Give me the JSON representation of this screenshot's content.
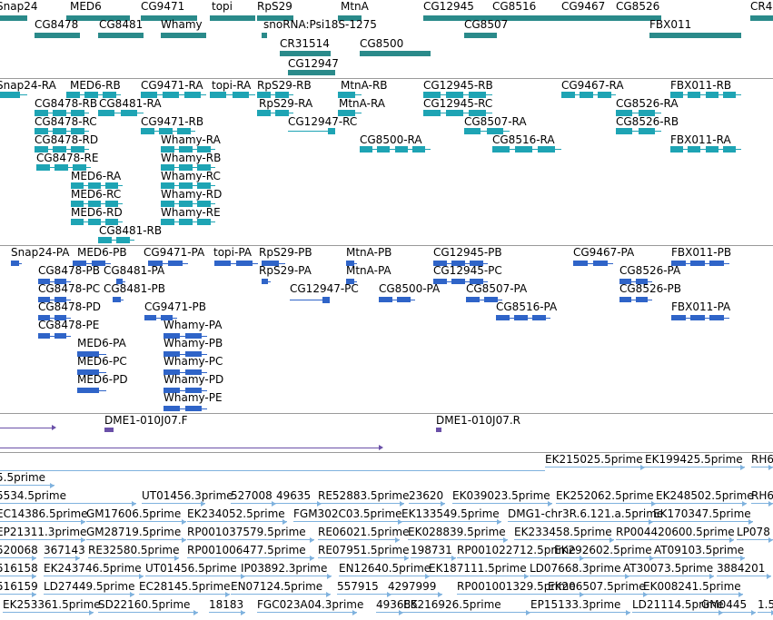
{
  "colors": {
    "gene": "#2a8a8a",
    "transcript": "#1ea4b4",
    "protein": "#2f64c8",
    "clone": "#6a50a8",
    "est": "#7fb2de",
    "separator": "#9a9a9a"
  },
  "tracks": {
    "gene": [
      {
        "label": "Snap24"
      },
      {
        "label": "MED6"
      },
      {
        "label": "CG9471"
      },
      {
        "label": "topi"
      },
      {
        "label": "RpS29"
      },
      {
        "label": "MtnA"
      },
      {
        "label": "CG12945"
      },
      {
        "label": "CG8516"
      },
      {
        "label": "CG9467"
      },
      {
        "label": "CG8526"
      },
      {
        "label": "CR4"
      },
      {
        "label": "CG8478"
      },
      {
        "label": "CG8481"
      },
      {
        "label": "Whamy"
      },
      {
        "label": "snoRNA:Psi18S-1275"
      },
      {
        "label": "CG8507"
      },
      {
        "label": "FBX011"
      },
      {
        "label": "CR31514"
      },
      {
        "label": "CG8500"
      },
      {
        "label": "CG12947"
      }
    ],
    "transcript": [
      {
        "label": "Snap24-RA"
      },
      {
        "label": "MED6-RB"
      },
      {
        "label": "CG9471-RA"
      },
      {
        "label": "topi-RA"
      },
      {
        "label": "RpS29-RB"
      },
      {
        "label": "MtnA-RB"
      },
      {
        "label": "CG12945-RB"
      },
      {
        "label": "CG9467-RA"
      },
      {
        "label": "FBX011-RB"
      },
      {
        "label": "CG8478-RB"
      },
      {
        "label": "CG8481-RA"
      },
      {
        "label": "RpS29-RA"
      },
      {
        "label": "MtnA-RA"
      },
      {
        "label": "CG12945-RC"
      },
      {
        "label": "CG8526-RA"
      },
      {
        "label": "CG8478-RC"
      },
      {
        "label": "CG9471-RB"
      },
      {
        "label": "CG12947-RC"
      },
      {
        "label": "CG8507-RA"
      },
      {
        "label": "CG8526-RB"
      },
      {
        "label": "CG8478-RD"
      },
      {
        "label": "Whamy-RA"
      },
      {
        "label": "CG8500-RA"
      },
      {
        "label": "CG8516-RA"
      },
      {
        "label": "FBX011-RA"
      },
      {
        "label": "CG8478-RE"
      },
      {
        "label": "Whamy-RB"
      },
      {
        "label": "MED6-RA"
      },
      {
        "label": "Whamy-RC"
      },
      {
        "label": "MED6-RC"
      },
      {
        "label": "Whamy-RD"
      },
      {
        "label": "MED6-RD"
      },
      {
        "label": "Whamy-RE"
      },
      {
        "label": "CG8481-RB"
      }
    ],
    "protein": [
      {
        "label": "Snap24-PA"
      },
      {
        "label": "MED6-PB"
      },
      {
        "label": "CG9471-PA"
      },
      {
        "label": "topi-PA"
      },
      {
        "label": "RpS29-PB"
      },
      {
        "label": "MtnA-PB"
      },
      {
        "label": "CG12945-PB"
      },
      {
        "label": "CG9467-PA"
      },
      {
        "label": "FBX011-PB"
      },
      {
        "label": "CG8478-PB"
      },
      {
        "label": "CG8481-PA"
      },
      {
        "label": "RpS29-PA"
      },
      {
        "label": "MtnA-PA"
      },
      {
        "label": "CG12945-PC"
      },
      {
        "label": "CG8526-PA"
      },
      {
        "label": "CG8478-PC"
      },
      {
        "label": "CG8481-PB"
      },
      {
        "label": "CG12947-PC"
      },
      {
        "label": "CG8500-PA"
      },
      {
        "label": "CG8507-PA"
      },
      {
        "label": "CG8526-PB"
      },
      {
        "label": "CG8478-PD"
      },
      {
        "label": "CG9471-PB"
      },
      {
        "label": "CG8516-PA"
      },
      {
        "label": "FBX011-PA"
      },
      {
        "label": "CG8478-PE"
      },
      {
        "label": "Whamy-PA"
      },
      {
        "label": "MED6-PA"
      },
      {
        "label": "Whamy-PB"
      },
      {
        "label": "MED6-PC"
      },
      {
        "label": "Whamy-PC"
      },
      {
        "label": "MED6-PD"
      },
      {
        "label": "Whamy-PD"
      },
      {
        "label": "Whamy-PE"
      }
    ],
    "clone": [
      {
        "label": "DME1-010J07.F"
      },
      {
        "label": "DME1-010J07.R"
      }
    ],
    "est": [
      {
        "label": "EK215025.5prime"
      },
      {
        "label": "EK199425.5prime"
      },
      {
        "label": "RH6"
      },
      {
        "label": "5.5prime"
      },
      {
        "label": "5534.5prime"
      },
      {
        "label": "UT01456.3prime"
      },
      {
        "label": "527008"
      },
      {
        "label": "49635"
      },
      {
        "label": "RE52883.5prime"
      },
      {
        "label": "23620"
      },
      {
        "label": "EK039023.5prime"
      },
      {
        "label": "EK252062.5prime"
      },
      {
        "label": "EK248502.5prime"
      },
      {
        "label": "RH6"
      },
      {
        "label": "EC14386.5prime"
      },
      {
        "label": "GM17606.5prime"
      },
      {
        "label": "EK234052.5prime"
      },
      {
        "label": "FGM302C03.5prime"
      },
      {
        "label": "EK133549.5prime"
      },
      {
        "label": "DMG1-chr3R.6.121.a.5prime"
      },
      {
        "label": "EK170347.5prime"
      },
      {
        "label": "EP21311.3prime"
      },
      {
        "label": "GM28719.5prime"
      },
      {
        "label": "RP001037579.5prime"
      },
      {
        "label": "RE06021.5prime"
      },
      {
        "label": "EK028839.5prime"
      },
      {
        "label": "EK233458.5prime"
      },
      {
        "label": "RP004420600.5prime"
      },
      {
        "label": "LP078"
      },
      {
        "label": "520068"
      },
      {
        "label": "367143"
      },
      {
        "label": "RE32580.5prime"
      },
      {
        "label": "RP001006477.5prime"
      },
      {
        "label": "RE07951.5prime"
      },
      {
        "label": "198731"
      },
      {
        "label": "RP001022712.5prime"
      },
      {
        "label": "EK292602.5prime"
      },
      {
        "label": "AT09103.5prime"
      },
      {
        "label": "516158"
      },
      {
        "label": "EK243746.5prime"
      },
      {
        "label": "UT01456.5prime"
      },
      {
        "label": "IP03892.3prime"
      },
      {
        "label": "EN12640.5prime"
      },
      {
        "label": "EK187111.5prime"
      },
      {
        "label": "LD07668.3prime"
      },
      {
        "label": "AT30073.5prime"
      },
      {
        "label": "3884201"
      },
      {
        "label": "516159"
      },
      {
        "label": "LD27449.5prime"
      },
      {
        "label": "EC28145.5prime"
      },
      {
        "label": "EN07124.5prime"
      },
      {
        "label": "557915"
      },
      {
        "label": "4297999"
      },
      {
        "label": "RP001001329.5prime"
      },
      {
        "label": "EK206507.5prime"
      },
      {
        "label": "EK008241.5prime"
      },
      {
        "label": "EK253361.5prime"
      },
      {
        "label": "SD22160.5prime"
      },
      {
        "label": "18183"
      },
      {
        "label": "FGC023A04.3prime"
      },
      {
        "label": "493685"
      },
      {
        "label": "EK216926.5prime"
      },
      {
        "label": "EP15133.3prime"
      },
      {
        "label": "LD21114.5prime"
      },
      {
        "label": "GM0445"
      },
      {
        "label": "1.5pri"
      }
    ]
  }
}
